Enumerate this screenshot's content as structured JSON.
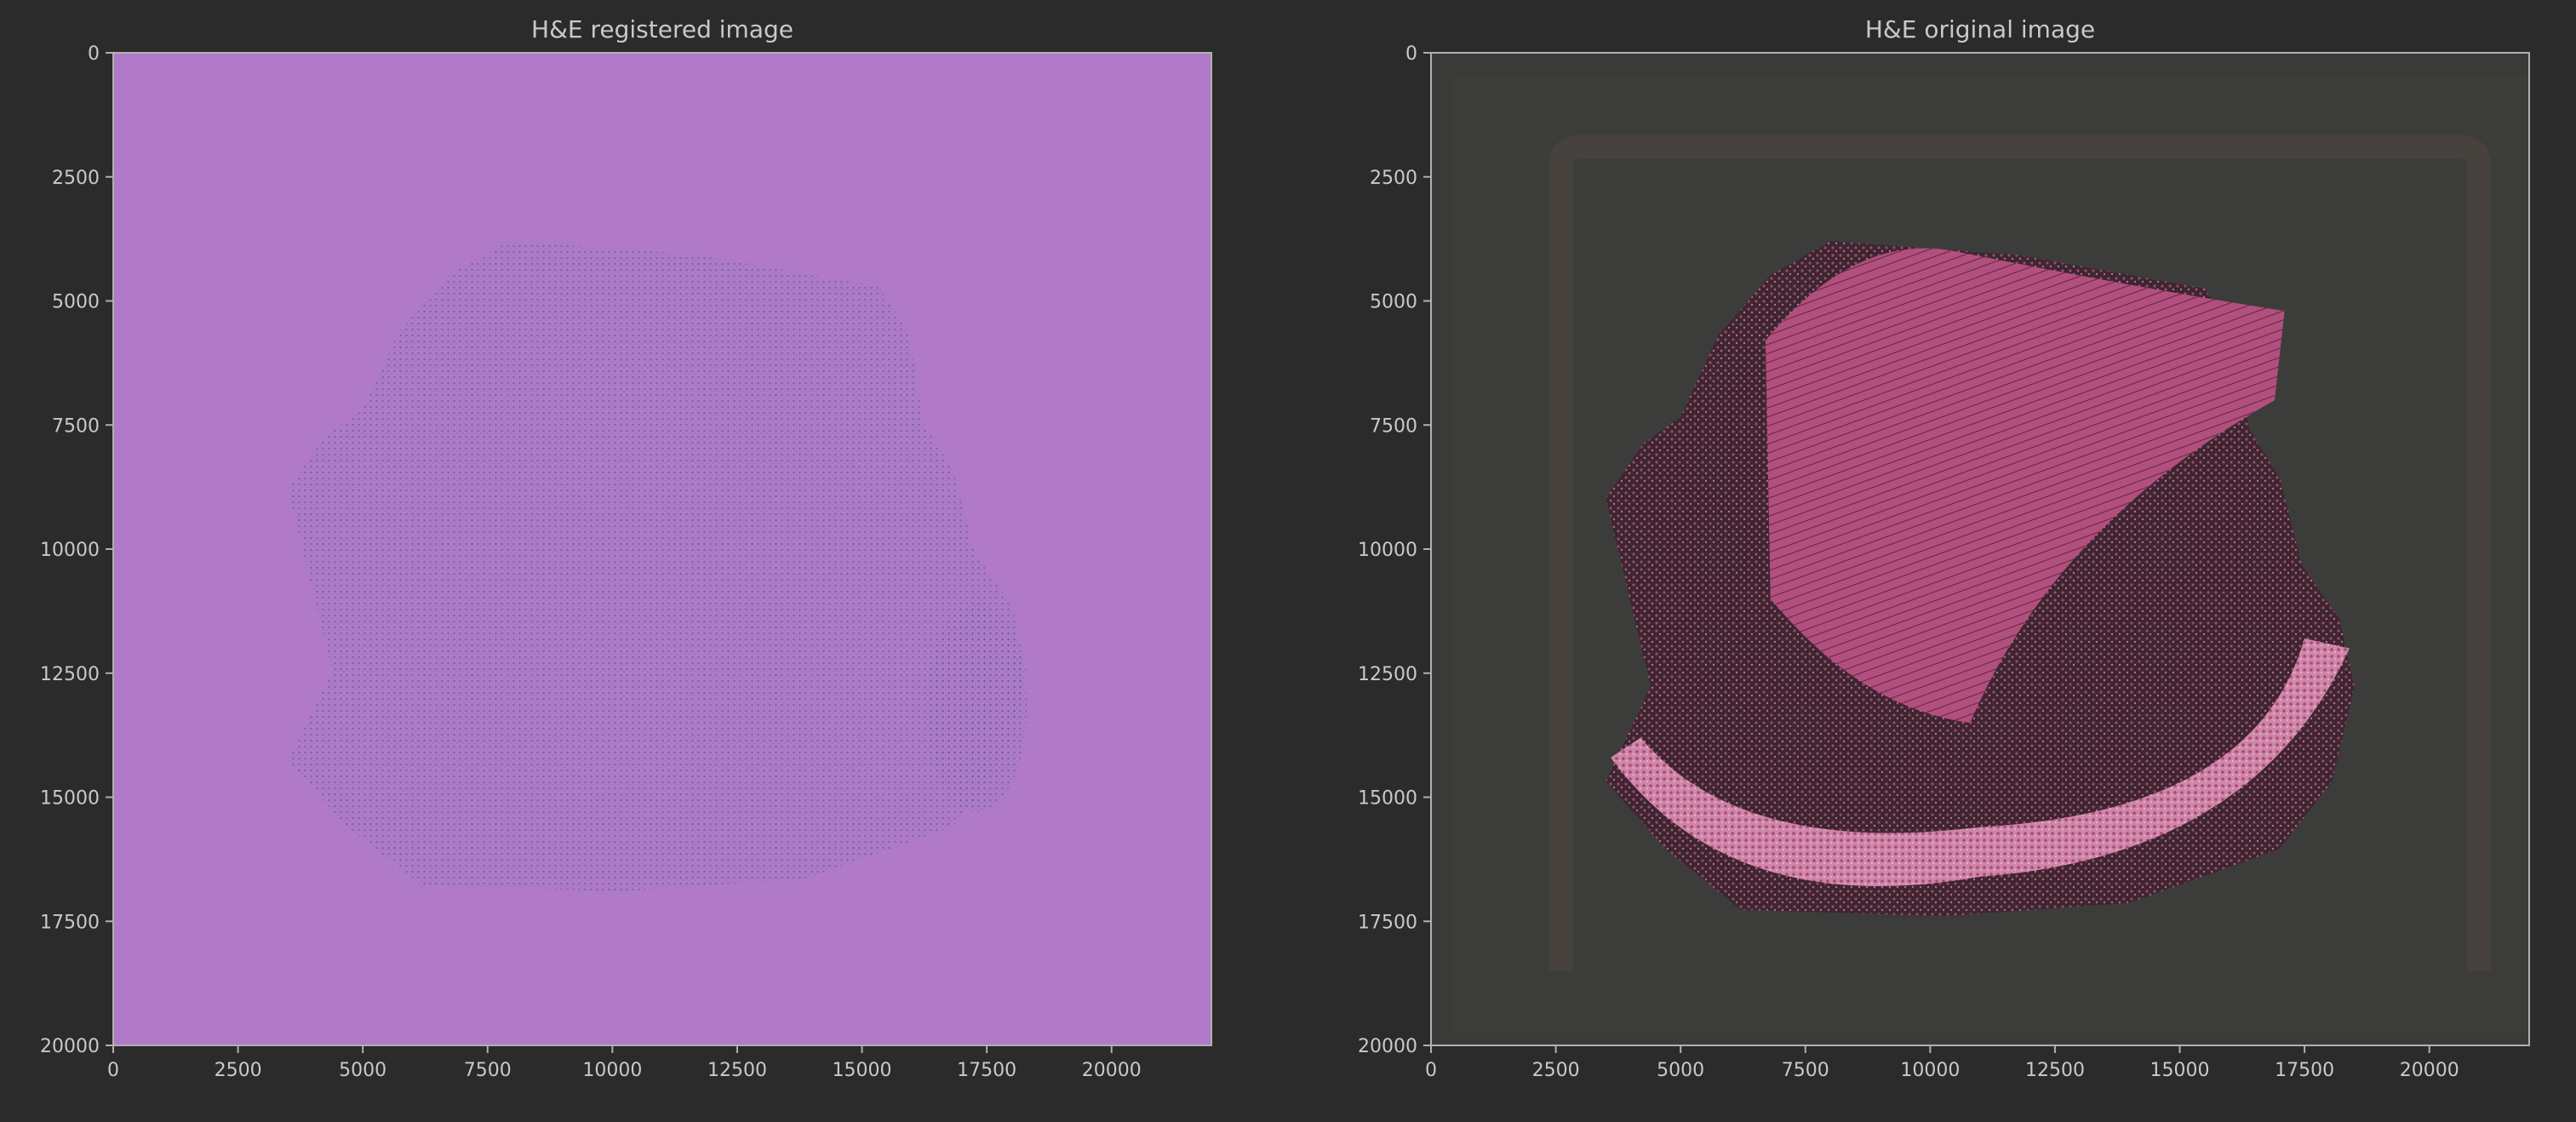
{
  "figure": {
    "background": "#2b2b2b",
    "text_color": "#c9c9c9",
    "axis_color": "#b0b0b0"
  },
  "chart_data": [
    {
      "type": "image",
      "title": "H&E registered image",
      "xlim": [
        0,
        22000
      ],
      "ylim": [
        20000,
        0
      ],
      "y_inverted": true,
      "x_ticks": [
        0,
        2500,
        5000,
        7500,
        10000,
        12500,
        15000,
        17500,
        20000
      ],
      "x_tick_labels": [
        "0",
        "2500",
        "5000",
        "7500",
        "10000",
        "12500",
        "15000",
        "17500",
        "20000"
      ],
      "y_ticks": [
        0,
        2500,
        5000,
        7500,
        10000,
        12500,
        15000,
        17500,
        20000
      ],
      "y_tick_labels": [
        "0",
        "2500",
        "5000",
        "7500",
        "10000",
        "12500",
        "15000",
        "17500",
        "20000"
      ],
      "grid": false,
      "image_background": "#b07ac8",
      "tissue_color": "#7a6fa8",
      "tissue_extent_x": [
        3500,
        18300
      ],
      "tissue_extent_y": [
        3800,
        16900
      ]
    },
    {
      "type": "image",
      "title": "H&E original image",
      "xlim": [
        0,
        22000
      ],
      "ylim": [
        20000,
        0
      ],
      "y_inverted": true,
      "x_ticks": [
        0,
        2500,
        5000,
        7500,
        10000,
        12500,
        15000,
        17500,
        20000
      ],
      "x_tick_labels": [
        "0",
        "2500",
        "5000",
        "7500",
        "10000",
        "12500",
        "15000",
        "17500",
        "20000"
      ],
      "y_ticks": [
        0,
        2500,
        5000,
        7500,
        10000,
        12500,
        15000,
        17500,
        20000
      ],
      "y_tick_labels": [
        "0",
        "2500",
        "5000",
        "7500",
        "10000",
        "12500",
        "15000",
        "17500",
        "20000"
      ],
      "grid": false,
      "image_background": "#3a3b38",
      "tissue_color": "#b04c7a",
      "tissue_extent_x": [
        3500,
        18500
      ],
      "tissue_extent_y": [
        3800,
        17400
      ]
    }
  ]
}
